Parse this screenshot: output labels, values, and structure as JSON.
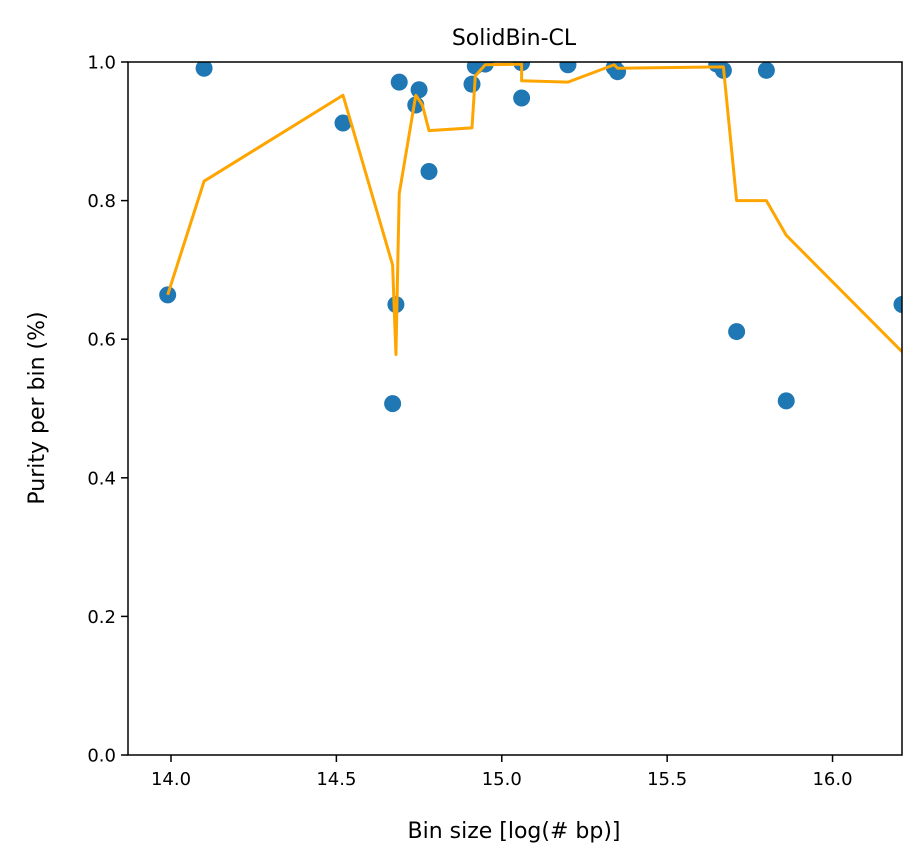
{
  "chart_data": {
    "type": "scatter",
    "title": "SolidBin-CL",
    "xlabel": "Bin size [log(# bp)]",
    "ylabel": "Purity per bin (%)",
    "xlim": [
      13.87,
      16.21
    ],
    "ylim": [
      0.0,
      1.0
    ],
    "grid": false,
    "x_ticks": [
      "14.0",
      "14.5",
      "15.0",
      "15.5",
      "16.0"
    ],
    "x_tick_values": [
      14.0,
      14.5,
      15.0,
      15.5,
      16.0
    ],
    "y_ticks": [
      "0.0",
      "0.2",
      "0.4",
      "0.6",
      "0.8",
      "1.0"
    ],
    "y_tick_values": [
      0.0,
      0.2,
      0.4,
      0.6,
      0.8,
      1.0
    ],
    "series": [
      {
        "kind": "scatter",
        "color": "#1f77b4",
        "points": [
          [
            13.99,
            0.664
          ],
          [
            14.1,
            0.991
          ],
          [
            14.52,
            0.912
          ],
          [
            14.67,
            0.507
          ],
          [
            14.68,
            0.65
          ],
          [
            14.69,
            0.971
          ],
          [
            14.74,
            0.938
          ],
          [
            14.75,
            0.96
          ],
          [
            14.78,
            0.842
          ],
          [
            14.91,
            0.968
          ],
          [
            14.92,
            0.994
          ],
          [
            14.95,
            0.997
          ],
          [
            15.06,
            0.999
          ],
          [
            15.06,
            0.948
          ],
          [
            15.2,
            0.996
          ],
          [
            15.34,
            0.992
          ],
          [
            15.35,
            0.986
          ],
          [
            15.65,
            0.997
          ],
          [
            15.67,
            0.988
          ],
          [
            15.71,
            0.611
          ],
          [
            15.8,
            0.988
          ],
          [
            15.86,
            0.511
          ],
          [
            16.21,
            0.65
          ]
        ]
      },
      {
        "kind": "line",
        "color": "#ffa500",
        "points": [
          [
            13.99,
            0.664
          ],
          [
            14.1,
            0.828
          ],
          [
            14.52,
            0.952
          ],
          [
            14.67,
            0.707
          ],
          [
            14.68,
            0.578
          ],
          [
            14.69,
            0.81
          ],
          [
            14.74,
            0.952
          ],
          [
            14.76,
            0.938
          ],
          [
            14.78,
            0.901
          ],
          [
            14.91,
            0.905
          ],
          [
            14.92,
            0.98
          ],
          [
            14.95,
            0.996
          ],
          [
            15.06,
            0.997
          ],
          [
            15.06,
            0.973
          ],
          [
            15.2,
            0.971
          ],
          [
            15.34,
            0.996
          ],
          [
            15.35,
            0.991
          ],
          [
            15.67,
            0.993
          ],
          [
            15.71,
            0.8
          ],
          [
            15.8,
            0.8
          ],
          [
            15.86,
            0.75
          ],
          [
            16.21,
            0.582
          ]
        ]
      }
    ]
  }
}
